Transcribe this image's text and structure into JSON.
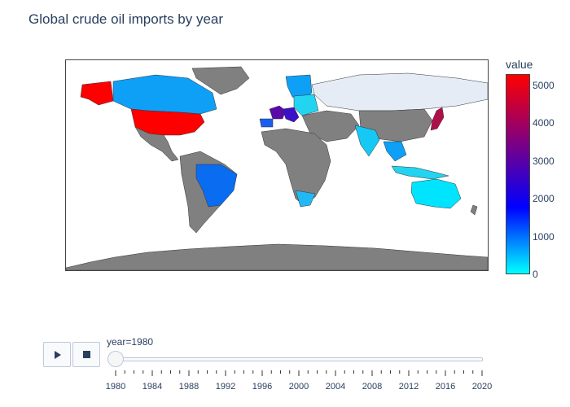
{
  "chart_data": {
    "type": "choropleth",
    "title": "Global crude oil imports by year",
    "colorbar": {
      "title": "value",
      "ticks": [
        0,
        1000,
        2000,
        3000,
        4000,
        5000
      ],
      "range": [
        0,
        5300
      ],
      "colorscale": [
        "#00ffff",
        "#0000ff",
        "#800080",
        "#ff0000"
      ]
    },
    "frame": "year=1980",
    "regions": [
      {
        "name": "USA",
        "value": 5300
      },
      {
        "name": "Japan",
        "value": 4500
      },
      {
        "name": "France",
        "value": 2600
      },
      {
        "name": "Italy",
        "value": 2400
      },
      {
        "name": "Brazil",
        "value": 1000
      },
      {
        "name": "Spain",
        "value": 900
      },
      {
        "name": "Canada",
        "value": 600
      },
      {
        "name": "Alaska",
        "value": 5300
      },
      {
        "name": "India",
        "value": 300
      },
      {
        "name": "Australia",
        "value": 150
      }
    ],
    "nodata_color": "#808080",
    "slider": {
      "label": "year=1980",
      "tick_labels": [
        "1980",
        "1984",
        "1988",
        "1992",
        "1996",
        "2000",
        "2004",
        "2008",
        "2012",
        "2016",
        "2020"
      ]
    }
  }
}
